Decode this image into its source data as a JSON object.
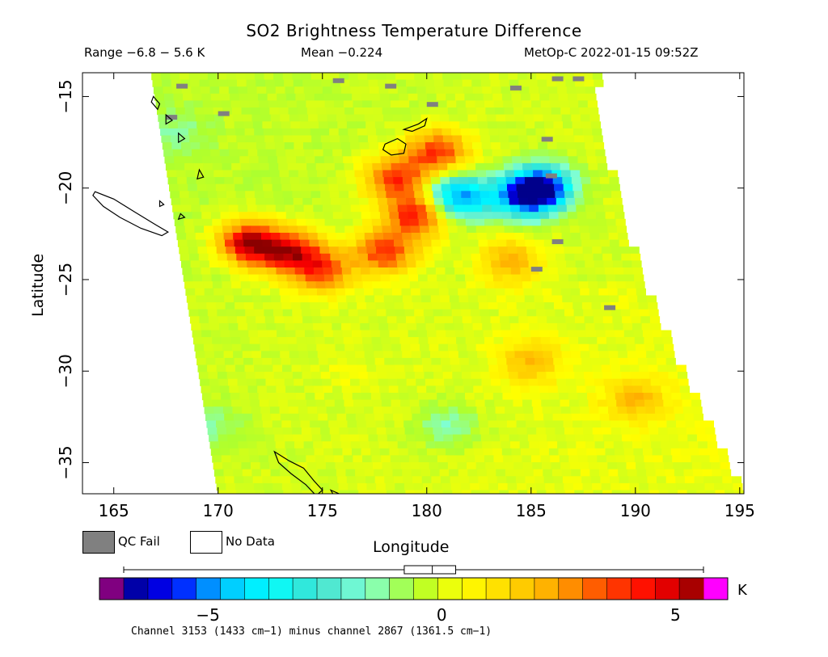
{
  "header": {
    "title": "SO2 Brightness Temperature Difference",
    "range_text": "Range −6.8 − 5.6 K",
    "mean_text": "Mean −0.224",
    "stamp_text": "MetOp-C 2022-01-15 09:52Z"
  },
  "legend": {
    "qc_fail_label": "QC Fail",
    "no_data_label": "No Data",
    "qc_fail_color": "#808080",
    "no_data_color": "#ffffff"
  },
  "axes": {
    "xlabel": "Longitude",
    "ylabel": "Latitude"
  },
  "colorbar": {
    "unit": "K",
    "ticks": [
      -5,
      0,
      5
    ],
    "tick_labels": [
      "−5",
      "0",
      "5"
    ],
    "range": [
      -6.8,
      5.6
    ],
    "under_color": "#800080",
    "over_color": "#ff00ff",
    "box_whisker": {
      "min": -6.8,
      "q1": -0.8,
      "median": -0.2,
      "q3": 0.3,
      "max": 5.6
    }
  },
  "footnote": "Channel 3153 (1433 cm−1) minus channel 2867 (1361.5 cm−1)",
  "chart_data": {
    "type": "heatmap",
    "title": "SO2 Brightness Temperature Difference",
    "xlabel": "Longitude",
    "ylabel": "Latitude",
    "xlim": [
      163.5,
      195.2
    ],
    "ylim": [
      -36.7,
      -13.7
    ],
    "x_ticks": [
      165,
      170,
      175,
      180,
      185,
      190,
      195
    ],
    "y_ticks": [
      -15,
      -20,
      -25,
      -30,
      -35
    ],
    "value_range": [
      -6.8,
      5.6
    ],
    "mean": -0.224,
    "units": "K",
    "colormap": [
      "#00008b",
      "#0000ff",
      "#00bfff",
      "#00ffff",
      "#40e0d0",
      "#7fffd4",
      "#adff2f",
      "#ffff00",
      "#ffd700",
      "#ffa500",
      "#ff4500",
      "#ff0000",
      "#8b0000"
    ],
    "features": [
      {
        "lon": 171.5,
        "lat": -23.0,
        "value": 5.5
      },
      {
        "lon": 173.5,
        "lat": -23.5,
        "value": 4.5
      },
      {
        "lon": 175.0,
        "lat": -24.5,
        "value": 3.5
      },
      {
        "lon": 178.5,
        "lat": -19.5,
        "value": 4.0
      },
      {
        "lon": 179.5,
        "lat": -21.5,
        "value": 4.5
      },
      {
        "lon": 180.5,
        "lat": -18.0,
        "value": 4.0
      },
      {
        "lon": 178.0,
        "lat": -23.5,
        "value": 4.0
      },
      {
        "lon": 181.5,
        "lat": -20.5,
        "value": -5.0
      },
      {
        "lon": 184.5,
        "lat": -20.5,
        "value": -4.0
      },
      {
        "lon": 185.5,
        "lat": -20.0,
        "value": -6.0
      },
      {
        "lon": 184.0,
        "lat": -24.0,
        "value": 2.5
      },
      {
        "lon": 185.0,
        "lat": -29.5,
        "value": 2.0
      },
      {
        "lon": 190.0,
        "lat": -31.5,
        "value": 2.0
      },
      {
        "lon": 181.0,
        "lat": -33.0,
        "value": -1.5
      },
      {
        "lon": 170.0,
        "lat": -33.0,
        "value": -1.0
      },
      {
        "lon": 168.0,
        "lat": -17.0,
        "value": -0.8
      },
      {
        "lon": 176.0,
        "lat": -30.0,
        "value": 0.3
      }
    ]
  }
}
